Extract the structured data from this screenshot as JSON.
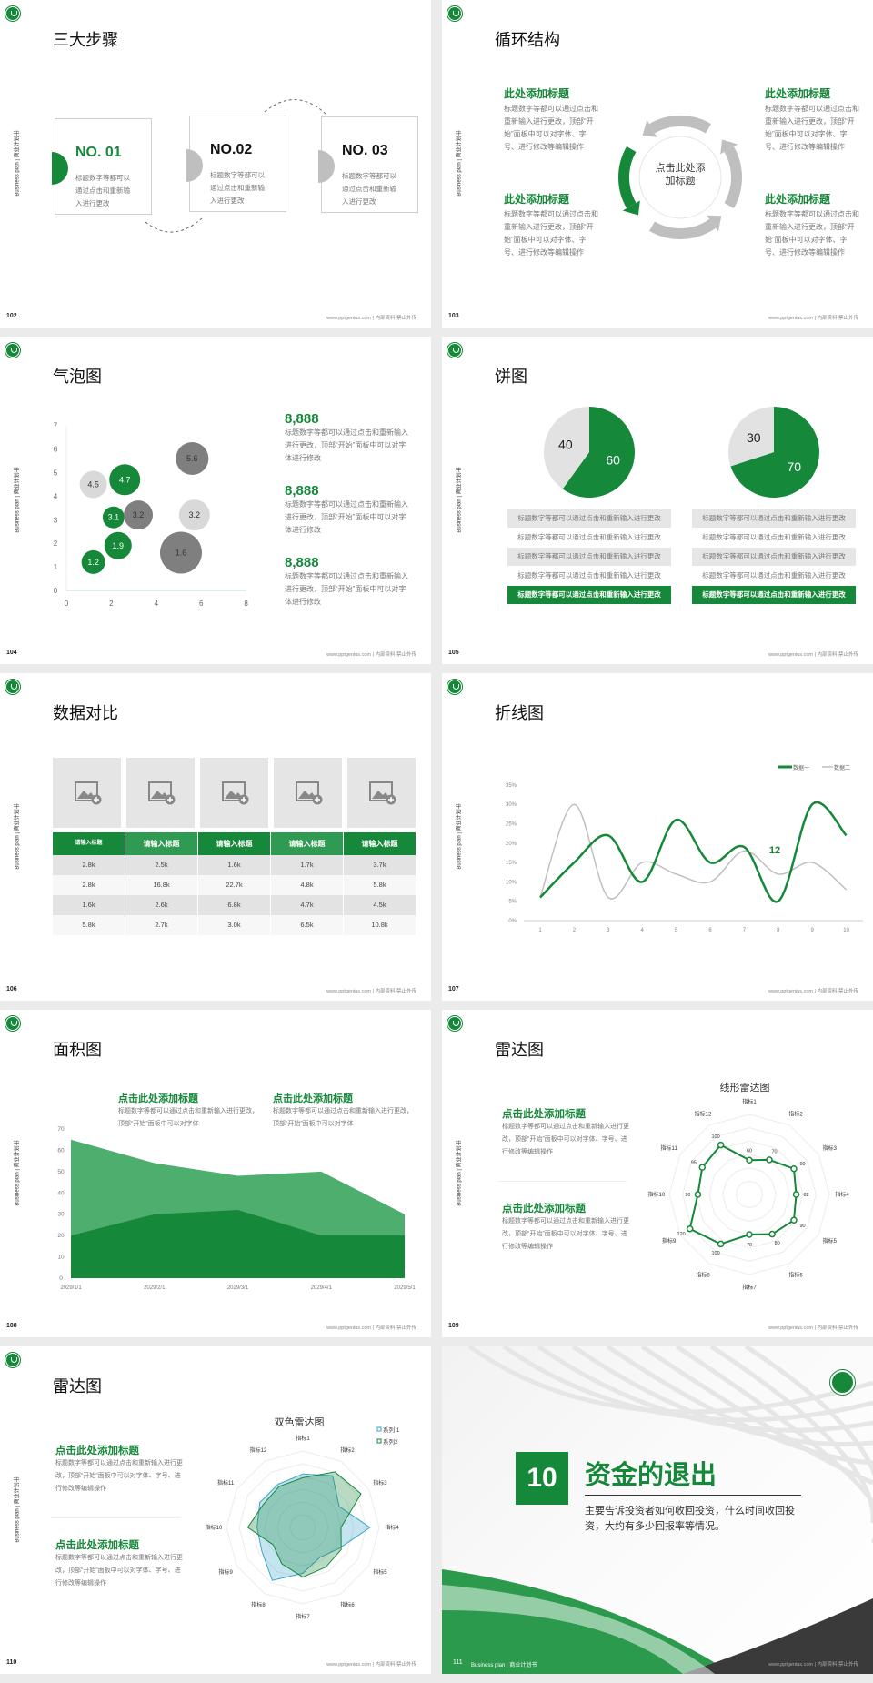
{
  "common": {
    "side_label": "Business plan | 商业计划书",
    "footer": "www.pptgenius.com | 内部资料 禁止外传",
    "colors": {
      "green": "#16883a",
      "mid_green": "#4eae6e",
      "light_gray": "#e2e2e2",
      "mid_gray": "#bfbfbf",
      "dark_gray": "#7f7f7f",
      "page_bg": "#ebebeb"
    }
  },
  "s102": {
    "page": "102",
    "title": "三大步骤",
    "steps": [
      {
        "no": "NO. 01",
        "text": "标题数字等都可以通过点击和重新输入进行更改",
        "active": true
      },
      {
        "no": "NO.02",
        "text": "标题数字等都可以通过点击和重新输入进行更改",
        "active": false
      },
      {
        "no": "NO. 03",
        "text": "标题数字等都可以通过点击和重新输入进行更改",
        "active": false
      }
    ]
  },
  "s103": {
    "page": "103",
    "title": "循环结构",
    "center": "点击此处添加标题",
    "items": [
      {
        "heading": "此处添加标题",
        "text": "标题数字等都可以通过点击和重新输入进行更改，顶部“开始”面板中可以对字体、字号、进行修改等编辑操作"
      },
      {
        "heading": "此处添加标题",
        "text": "标题数字等都可以通过点击和重新输入进行更改，顶部“开始”面板中可以对字体、字号、进行修改等编辑操作"
      },
      {
        "heading": "此处添加标题",
        "text": "标题数字等都可以通过点击和重新输入进行更改，顶部“开始”面板中可以对字体、字号、进行修改等编辑操作"
      },
      {
        "heading": "此处添加标题",
        "text": "标题数字等都可以通过点击和重新输入进行更改，顶部“开始”面板中可以对字体、字号、进行修改等编辑操作"
      }
    ]
  },
  "s104": {
    "page": "104",
    "title": "气泡图",
    "stats": [
      {
        "value": "8,888",
        "text": "标题数字等都可以通过点击和重新输入进行更改，顶部“开始”面板中可以对字体进行修改"
      },
      {
        "value": "8,888",
        "text": "标题数字等都可以通过点击和重新输入进行更改，顶部“开始”面板中可以对字体进行修改"
      },
      {
        "value": "8,888",
        "text": "标题数字等都可以通过点击和重新输入进行更改，顶部“开始”面板中可以对字体进行修改"
      }
    ]
  },
  "s105": {
    "page": "105",
    "title": "饼图",
    "row_text": "标题数字等都可以通过点击和重新输入进行更改"
  },
  "s106": {
    "page": "106",
    "title": "数据对比"
  },
  "s107": {
    "page": "107",
    "title": "折线图"
  },
  "s108": {
    "page": "108",
    "title": "面积图",
    "blocks": [
      {
        "heading": "点击此处添加标题",
        "text": "标题数字等都可以通过点击和重新输入进行更改，顶部“开始”面板中可以对字体"
      },
      {
        "heading": "点击此处添加标题",
        "text": "标题数字等都可以通过点击和重新输入进行更改，顶部“开始”面板中可以对字体"
      }
    ]
  },
  "s109": {
    "page": "109",
    "title": "雷达图",
    "blocks": [
      {
        "heading": "点击此处添加标题",
        "text": "标题数字等都可以通过点击和重新输入进行更改，顶部“开始”面板中可以对字体、字号、进行修改等编辑操作"
      },
      {
        "heading": "点击此处添加标题",
        "text": "标题数字等都可以通过点击和重新输入进行更改，顶部“开始”面板中可以对字体、字号、进行修改等编辑操作"
      }
    ]
  },
  "s110": {
    "page": "110",
    "title": "雷达图",
    "blocks": [
      {
        "heading": "点击此处添加标题",
        "text": "标题数字等都可以通过点击和重新输入进行更改，顶部“开始”面板中可以对字体、字号、进行修改等编辑操作"
      },
      {
        "heading": "点击此处添加标题",
        "text": "标题数字等都可以通过点击和重新输入进行更改，顶部“开始”面板中可以对字体、字号、进行修改等编辑操作"
      }
    ]
  },
  "s111": {
    "page": "111",
    "number": "10",
    "title": "资金的退出",
    "desc": "主要告诉投资者如何收回投资，什么时间收回投资，大约有多少回报率等情况。",
    "footer_label": "Business plan | 商业计划书"
  },
  "chart_data": [
    {
      "id": "bubble",
      "type": "scatter",
      "xlim": [
        0,
        8
      ],
      "ylim": [
        0,
        7
      ],
      "xticks": [
        0,
        2,
        4,
        6,
        8
      ],
      "yticks": [
        0,
        1,
        2,
        3,
        4,
        5,
        6,
        7
      ],
      "points": [
        {
          "x": 1.2,
          "y": 4.5,
          "size": 15,
          "label": "4.5",
          "color": "#d9d9d9"
        },
        {
          "x": 2.6,
          "y": 4.7,
          "size": 17,
          "label": "4.7",
          "color": "#16883a"
        },
        {
          "x": 5.6,
          "y": 5.6,
          "size": 18,
          "label": "5.6",
          "color": "#7f7f7f"
        },
        {
          "x": 2.1,
          "y": 3.1,
          "size": 12,
          "label": "3.1",
          "color": "#16883a"
        },
        {
          "x": 3.2,
          "y": 3.2,
          "size": 16,
          "label": "3.2",
          "color": "#7f7f7f"
        },
        {
          "x": 5.7,
          "y": 3.2,
          "size": 17,
          "label": "3.2",
          "color": "#d9d9d9"
        },
        {
          "x": 2.3,
          "y": 1.9,
          "size": 15,
          "label": "1.9",
          "color": "#16883a"
        },
        {
          "x": 1.2,
          "y": 1.2,
          "size": 13,
          "label": "1.2",
          "color": "#16883a"
        },
        {
          "x": 5.1,
          "y": 1.6,
          "size": 23,
          "label": "1.6",
          "color": "#7f7f7f"
        }
      ]
    },
    {
      "id": "pie1",
      "type": "pie",
      "slices": [
        {
          "value": 60,
          "color": "#16883a"
        },
        {
          "value": 40,
          "color": "#e2e2e2"
        }
      ]
    },
    {
      "id": "pie2",
      "type": "pie",
      "slices": [
        {
          "value": 70,
          "color": "#16883a"
        },
        {
          "value": 30,
          "color": "#e2e2e2"
        }
      ]
    },
    {
      "id": "table",
      "type": "table",
      "headers": [
        "请输入标题",
        "请输入标题",
        "请输入标题",
        "请输入标题",
        "请输入标题"
      ],
      "rows": [
        [
          "2.8k",
          "2.5k",
          "1.6k",
          "1.7k",
          "3.7k"
        ],
        [
          "2.8k",
          "16.8k",
          "22.7k",
          "4.8k",
          "5.8k"
        ],
        [
          "1.6k",
          "2.6k",
          "6.8k",
          "4.7k",
          "4.5k"
        ],
        [
          "5.8k",
          "2.7k",
          "3.0k",
          "6.5k",
          "10.8k"
        ]
      ]
    },
    {
      "id": "line",
      "type": "line",
      "categories": [
        "1",
        "2",
        "3",
        "4",
        "5",
        "6",
        "7",
        "8",
        "9",
        "10"
      ],
      "ylim": [
        0,
        35
      ],
      "yticks": [
        "0%",
        "5%",
        "10%",
        "15%",
        "20%",
        "25%",
        "30%",
        "35%"
      ],
      "series": [
        {
          "name": "数据一",
          "color": "#16883a",
          "values": [
            6,
            15,
            22,
            10,
            26,
            15,
            19,
            5,
            30,
            22
          ]
        },
        {
          "name": "数据二",
          "color": "#bfbfbf",
          "values": [
            6,
            30,
            6,
            15,
            12,
            10,
            18,
            12,
            15,
            8
          ]
        }
      ],
      "annotation": "12"
    },
    {
      "id": "area",
      "type": "area",
      "categories": [
        "2029/1/1",
        "2029/2/1",
        "2029/3/1",
        "2029/4/1",
        "2029/5/1"
      ],
      "ylim": [
        0,
        70
      ],
      "yticks": [
        0,
        10,
        20,
        30,
        40,
        50,
        60,
        70
      ],
      "series": [
        {
          "color": "#4eae6e",
          "values": [
            65,
            54,
            48,
            50,
            30
          ]
        },
        {
          "color": "#16883a",
          "values": [
            20,
            30,
            32,
            20,
            20
          ]
        }
      ]
    },
    {
      "id": "radar1",
      "type": "radar",
      "title": "线形雷达图",
      "axes": [
        "指标1",
        "指标2",
        "指标3",
        "指标4",
        "指标5",
        "指标6",
        "指标7",
        "指标8",
        "指标9",
        "指标10",
        "指标11",
        "指标12"
      ],
      "max": 140,
      "series": [
        {
          "color": "#16883a",
          "values": [
            60,
            70,
            90,
            82,
            90,
            80,
            70,
            100,
            120,
            90,
            95,
            100
          ]
        }
      ]
    },
    {
      "id": "radar2",
      "type": "radar",
      "title": "双色雷达图",
      "axes": [
        "指标1",
        "指标2",
        "指标3",
        "指标4",
        "指标5",
        "指标6",
        "指标7",
        "指标8",
        "指标9",
        "指标10",
        "指标11",
        "指标12"
      ],
      "max": 100,
      "series": [
        {
          "name": "系列 1",
          "color": "#3aa6c9",
          "values": [
            70,
            78,
            55,
            88,
            55,
            45,
            60,
            80,
            62,
            60,
            65,
            65
          ]
        },
        {
          "name": "系列2",
          "color": "#16883a",
          "values": [
            65,
            84,
            88,
            50,
            58,
            60,
            65,
            55,
            45,
            72,
            60,
            62
          ]
        }
      ]
    }
  ]
}
